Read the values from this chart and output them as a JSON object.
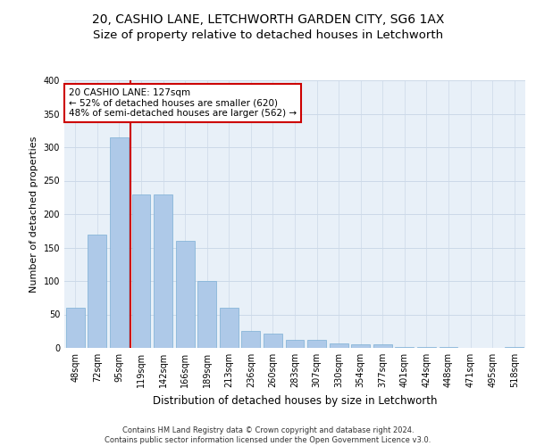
{
  "title1": "20, CASHIO LANE, LETCHWORTH GARDEN CITY, SG6 1AX",
  "title2": "Size of property relative to detached houses in Letchworth",
  "xlabel": "Distribution of detached houses by size in Letchworth",
  "ylabel": "Number of detached properties",
  "categories": [
    "48sqm",
    "72sqm",
    "95sqm",
    "119sqm",
    "142sqm",
    "166sqm",
    "189sqm",
    "213sqm",
    "236sqm",
    "260sqm",
    "283sqm",
    "307sqm",
    "330sqm",
    "354sqm",
    "377sqm",
    "401sqm",
    "424sqm",
    "448sqm",
    "471sqm",
    "495sqm",
    "518sqm"
  ],
  "values": [
    60,
    170,
    315,
    230,
    230,
    160,
    100,
    60,
    25,
    22,
    12,
    12,
    7,
    5,
    5,
    1,
    1,
    1,
    0,
    0,
    1
  ],
  "bar_color": "#aec9e8",
  "bar_edge_color": "#7bafd4",
  "vline_color": "#cc0000",
  "vline_x": 2.5,
  "annotation_text_line1": "20 CASHIO LANE: 127sqm",
  "annotation_text_line2": "← 52% of detached houses are smaller (620)",
  "annotation_text_line3": "48% of semi-detached houses are larger (562) →",
  "ylim": [
    0,
    400
  ],
  "yticks": [
    0,
    50,
    100,
    150,
    200,
    250,
    300,
    350,
    400
  ],
  "grid_color": "#ccd9e8",
  "background_color": "#e8f0f8",
  "footer_text": "Contains HM Land Registry data © Crown copyright and database right 2024.\nContains public sector information licensed under the Open Government Licence v3.0.",
  "title1_fontsize": 10,
  "title2_fontsize": 9.5,
  "xlabel_fontsize": 8.5,
  "ylabel_fontsize": 8,
  "tick_fontsize": 7,
  "annotation_fontsize": 7.5,
  "footer_fontsize": 6
}
